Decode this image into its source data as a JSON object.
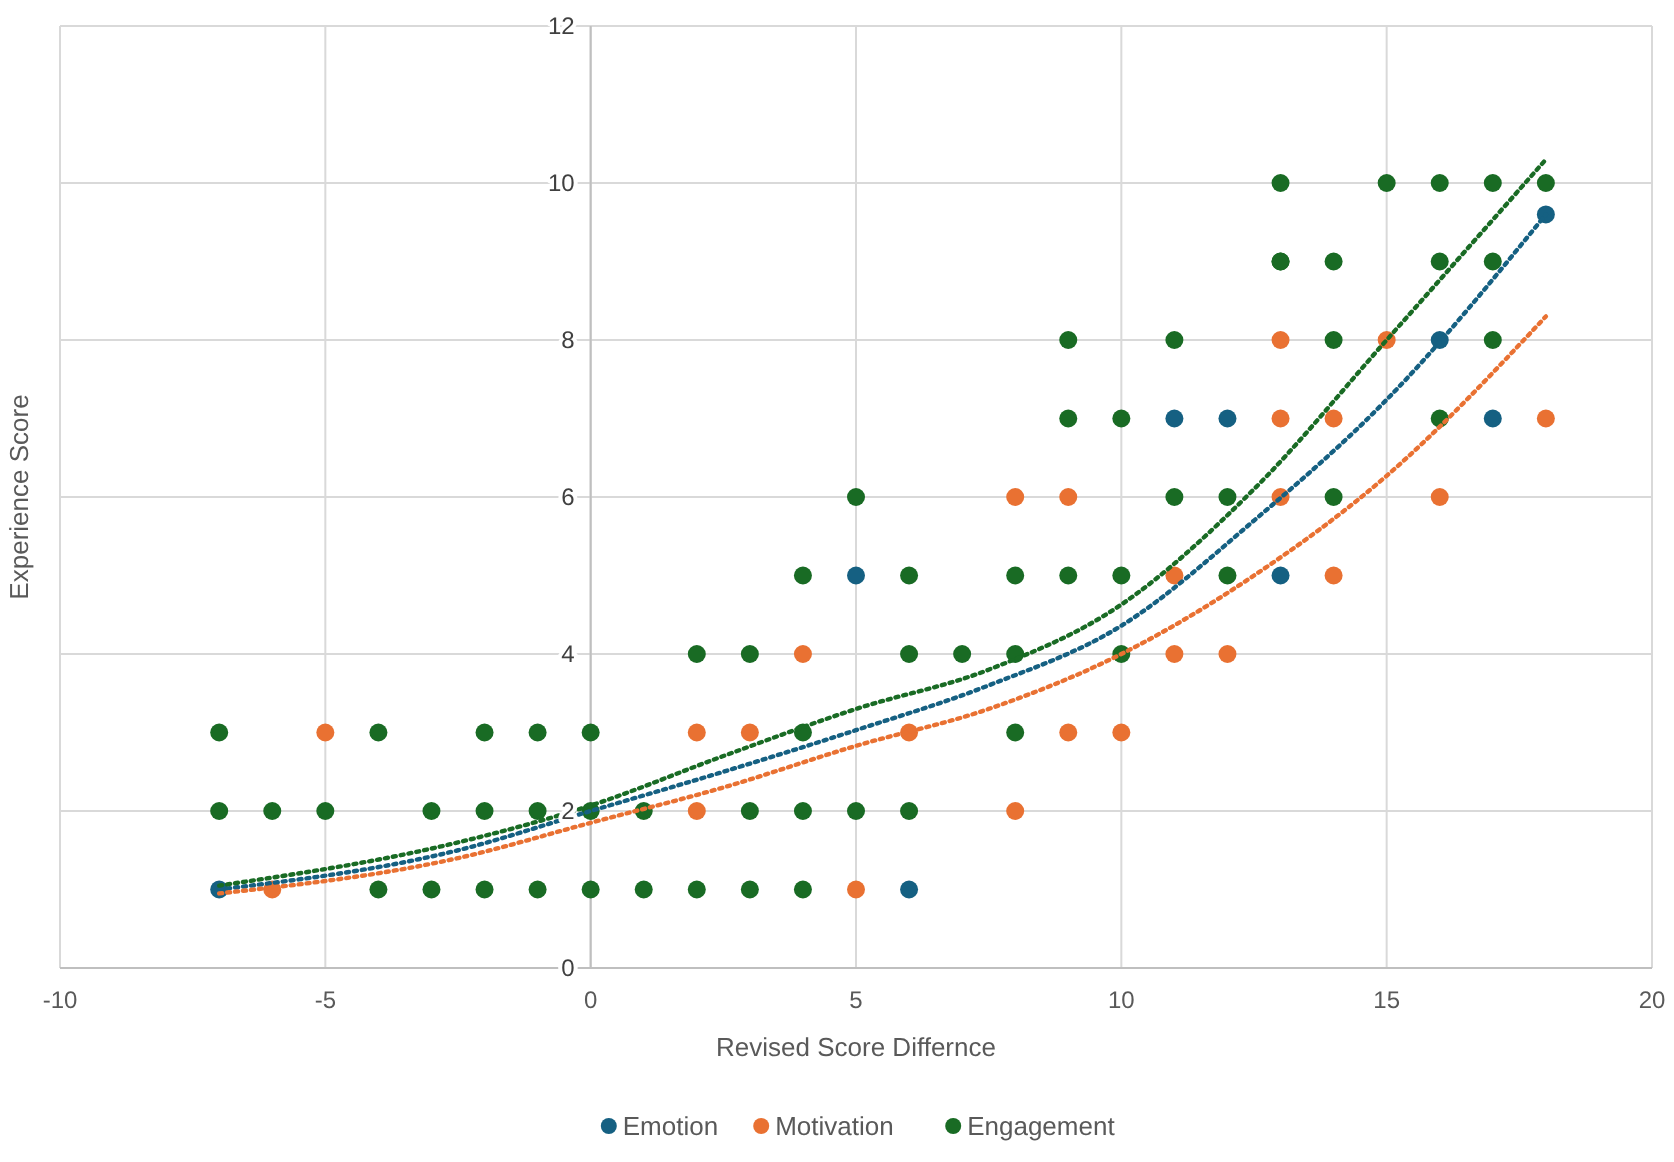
{
  "chart_data": {
    "type": "scatter",
    "xlabel": "Revised Score Differnce",
    "ylabel": "Experience Score",
    "xlim": [
      -10,
      20
    ],
    "ylim": [
      0,
      12
    ],
    "xticks": [
      -10,
      -5,
      0,
      5,
      10,
      15,
      20
    ],
    "yticks": [
      0,
      2,
      4,
      6,
      8,
      10,
      12
    ],
    "grid": true,
    "legend": "bottom",
    "marker": "circle",
    "series": [
      {
        "name": "Emotion",
        "color": "#156082",
        "x": [
          -7,
          5,
          6,
          11,
          12,
          13,
          16,
          17,
          18
        ],
        "values": [
          1,
          5,
          1,
          7,
          7,
          5,
          8,
          7,
          9.6
        ]
      },
      {
        "name": "Motivation",
        "color": "#e97132",
        "x": [
          -6,
          -5,
          2,
          2,
          3,
          4,
          5,
          6,
          8,
          8,
          9,
          9,
          10,
          11,
          11,
          12,
          13,
          13,
          13,
          14,
          14,
          15,
          16,
          18
        ],
        "values": [
          1,
          3,
          3,
          2,
          3,
          4,
          1,
          3,
          6,
          2,
          6,
          3,
          3,
          5,
          4,
          4,
          8,
          7,
          6,
          7,
          5,
          8,
          6,
          7
        ]
      },
      {
        "name": "Engagement",
        "color": "#196b24",
        "x": [
          -7,
          -4,
          -2,
          -1,
          0,
          4,
          8,
          -7,
          -6,
          -5,
          -3,
          -2,
          -1,
          0,
          1,
          3,
          4,
          5,
          6,
          -4,
          -3,
          -2,
          -1,
          0,
          1,
          2,
          3,
          4,
          2,
          3,
          6,
          7,
          8,
          10,
          4,
          6,
          8,
          9,
          10,
          12,
          5,
          9,
          10,
          11,
          12,
          14,
          16,
          9,
          11,
          13,
          14,
          17,
          13,
          14,
          16,
          17,
          13,
          15,
          16,
          17,
          18
        ],
        "values": [
          3,
          3,
          3,
          3,
          3,
          3,
          3,
          2,
          2,
          2,
          2,
          2,
          2,
          2,
          2,
          2,
          2,
          2,
          2,
          1,
          1,
          1,
          1,
          1,
          1,
          1,
          1,
          1,
          4,
          4,
          4,
          4,
          4,
          4,
          5,
          5,
          5,
          5,
          5,
          5,
          6,
          7,
          7,
          6,
          6,
          6,
          7,
          8,
          8,
          9,
          8,
          8,
          10,
          9,
          9,
          9,
          9,
          10,
          10,
          10,
          10
        ]
      },
      {
        "type": "line",
        "color": "#156082",
        "line_style": "dotted",
        "marker": "none",
        "x": [
          -7,
          -2.5,
          0,
          2.5,
          5,
          7.5,
          10,
          12.5,
          15,
          18
        ],
        "values": [
          1,
          1.5,
          2,
          2.5,
          3.03,
          3.6,
          4.36,
          5.7,
          7.24,
          9.6
        ]
      },
      {
        "type": "line",
        "color": "#e97132",
        "line_style": "dotted",
        "marker": "none",
        "x": [
          -7,
          -2.5,
          0,
          2.5,
          5,
          7.5,
          10,
          12.5,
          15,
          18
        ],
        "values": [
          0.95,
          1.4,
          1.85,
          2.3,
          2.83,
          3.3,
          4,
          5,
          6.27,
          8.3
        ]
      },
      {
        "type": "line",
        "color": "#196b24",
        "line_style": "dotted",
        "marker": "none",
        "x": [
          -7,
          -2.5,
          0,
          2.5,
          5,
          7.5,
          10,
          12.5,
          15,
          18
        ],
        "values": [
          1.05,
          1.6,
          2.07,
          2.7,
          3.3,
          3.8,
          4.63,
          6.1,
          8,
          10.3
        ]
      }
    ]
  }
}
